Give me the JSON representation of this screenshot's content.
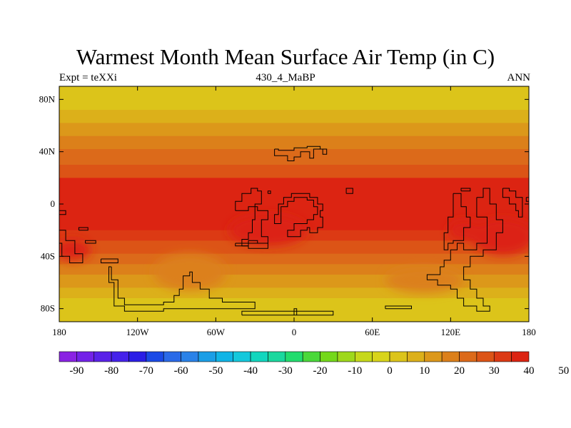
{
  "title": "Warmest Month Mean Surface Air Temp (in C)",
  "subtitle_left": "Expt = teXXi",
  "subtitle_center": "430_4_MaBP",
  "subtitle_right": "ANN",
  "map": {
    "lon_range": [
      -180,
      180
    ],
    "lat_range": [
      -90,
      90
    ],
    "lat_ticks": [
      {
        "lat": 80,
        "label": "80N"
      },
      {
        "lat": 40,
        "label": "40N"
      },
      {
        "lat": 0,
        "label": "0"
      },
      {
        "lat": -40,
        "label": "40S"
      },
      {
        "lat": -80,
        "label": "80S"
      }
    ],
    "lon_ticks": [
      {
        "lon": -180,
        "label": "180"
      },
      {
        "lon": -120,
        "label": "120W"
      },
      {
        "lon": -60,
        "label": "60W"
      },
      {
        "lon": 0,
        "label": "0"
      },
      {
        "lon": 60,
        "label": "60E"
      },
      {
        "lon": 120,
        "label": "120E"
      },
      {
        "lon": 180,
        "label": "180"
      }
    ],
    "bands": [
      {
        "lat0": 90,
        "lat1": 82,
        "value": 2
      },
      {
        "lat0": 82,
        "lat1": 72,
        "value": 4
      },
      {
        "lat0": 72,
        "lat1": 62,
        "value": 8
      },
      {
        "lat0": 62,
        "lat1": 52,
        "value": 12
      },
      {
        "lat0": 52,
        "lat1": 42,
        "value": 15
      },
      {
        "lat0": 42,
        "lat1": 30,
        "value": 20
      },
      {
        "lat0": 30,
        "lat1": 20,
        "value": 25
      },
      {
        "lat0": 20,
        "lat1": -5,
        "value": 35
      },
      {
        "lat0": -5,
        "lat1": -20,
        "value": 38
      },
      {
        "lat0": -20,
        "lat1": -28,
        "value": 33
      },
      {
        "lat0": -28,
        "lat1": -38,
        "value": 26
      },
      {
        "lat0": -38,
        "lat1": -46,
        "value": 20
      },
      {
        "lat0": -46,
        "lat1": -54,
        "value": 16
      },
      {
        "lat0": -54,
        "lat1": -64,
        "value": 12
      },
      {
        "lat0": -64,
        "lat1": -72,
        "value": 9
      },
      {
        "lat0": -72,
        "lat1": -90,
        "value": 4
      }
    ],
    "hotspots": [
      {
        "lon": 160,
        "lat": -25,
        "rlon": 24,
        "rlat": 14,
        "value": 45
      },
      {
        "lon": 130,
        "lat": -20,
        "rlon": 12,
        "rlat": 8,
        "value": 43
      },
      {
        "lon": -170,
        "lat": -35,
        "rlon": 14,
        "rlat": 8,
        "value": 40
      },
      {
        "lon": -20,
        "lat": -20,
        "rlon": 30,
        "rlat": 12,
        "value": 40
      },
      {
        "lon": -80,
        "lat": -52,
        "rlon": 28,
        "rlat": 14,
        "value": 18
      },
      {
        "lon": 100,
        "lat": -58,
        "rlon": 30,
        "rlat": 10,
        "value": 18
      }
    ],
    "coastlines": [
      [
        [
          -15,
          42
        ],
        [
          -15,
          37
        ],
        [
          -5,
          37
        ],
        [
          -5,
          33
        ],
        [
          0,
          33
        ],
        [
          0,
          36
        ],
        [
          5,
          36
        ],
        [
          5,
          40
        ],
        [
          12,
          40
        ],
        [
          12,
          35
        ],
        [
          15,
          35
        ],
        [
          15,
          42
        ],
        [
          22,
          42
        ],
        [
          22,
          38
        ],
        [
          25,
          38
        ],
        [
          25,
          42
        ],
        [
          20,
          42
        ],
        [
          20,
          44
        ],
        [
          10,
          44
        ],
        [
          10,
          43
        ],
        [
          0,
          43
        ],
        [
          0,
          41
        ],
        [
          -12,
          41
        ],
        [
          -12,
          42
        ],
        [
          -15,
          42
        ]
      ],
      [
        [
          -45,
          -5
        ],
        [
          -45,
          2
        ],
        [
          -40,
          2
        ],
        [
          -40,
          8
        ],
        [
          -33,
          8
        ],
        [
          -33,
          12
        ],
        [
          -28,
          12
        ],
        [
          -28,
          10
        ],
        [
          -25,
          10
        ],
        [
          -25,
          0
        ],
        [
          -30,
          0
        ],
        [
          -30,
          -12
        ],
        [
          -32,
          -12
        ],
        [
          -32,
          -22
        ],
        [
          -35,
          -22
        ],
        [
          -35,
          -27
        ],
        [
          -40,
          -27
        ],
        [
          -40,
          -32
        ],
        [
          -35,
          -32
        ],
        [
          -35,
          -28
        ],
        [
          -28,
          -28
        ],
        [
          -28,
          -30
        ],
        [
          -20,
          -30
        ],
        [
          -20,
          -25
        ],
        [
          -25,
          -25
        ],
        [
          -25,
          -12
        ],
        [
          -20,
          -12
        ],
        [
          -20,
          -5
        ],
        [
          -28,
          -5
        ],
        [
          -28,
          -2
        ],
        [
          -35,
          -2
        ],
        [
          -35,
          -5
        ],
        [
          -45,
          -5
        ]
      ],
      [
        [
          -45,
          -30
        ],
        [
          -45,
          -32
        ],
        [
          -35,
          -32
        ],
        [
          -35,
          -34
        ],
        [
          -20,
          -34
        ],
        [
          -20,
          -30
        ],
        [
          -45,
          -30
        ]
      ],
      [
        [
          -10,
          -15
        ],
        [
          -10,
          -2
        ],
        [
          -5,
          -2
        ],
        [
          -5,
          2
        ],
        [
          0,
          2
        ],
        [
          0,
          5
        ],
        [
          10,
          5
        ],
        [
          10,
          3
        ],
        [
          15,
          3
        ],
        [
          15,
          -2
        ],
        [
          18,
          -2
        ],
        [
          18,
          -8
        ],
        [
          15,
          -8
        ],
        [
          15,
          -12
        ],
        [
          10,
          -12
        ],
        [
          10,
          -15
        ],
        [
          0,
          -15
        ],
        [
          0,
          -20
        ],
        [
          -5,
          -20
        ],
        [
          -5,
          -25
        ],
        [
          5,
          -25
        ],
        [
          5,
          -20
        ],
        [
          10,
          -20
        ],
        [
          10,
          -18
        ],
        [
          12,
          -18
        ],
        [
          12,
          -22
        ],
        [
          18,
          -22
        ],
        [
          18,
          -18
        ],
        [
          22,
          -18
        ],
        [
          22,
          -10
        ],
        [
          20,
          -10
        ],
        [
          20,
          -5
        ],
        [
          22,
          -5
        ],
        [
          22,
          0
        ],
        [
          18,
          0
        ],
        [
          18,
          5
        ],
        [
          12,
          5
        ],
        [
          12,
          8
        ],
        [
          -2,
          8
        ],
        [
          -2,
          5
        ],
        [
          -8,
          5
        ],
        [
          -8,
          0
        ],
        [
          -12,
          0
        ],
        [
          -12,
          -8
        ],
        [
          -15,
          -8
        ],
        [
          -15,
          -15
        ],
        [
          -10,
          -15
        ]
      ],
      [
        [
          122,
          8
        ],
        [
          122,
          -10
        ],
        [
          118,
          -10
        ],
        [
          118,
          -22
        ],
        [
          115,
          -22
        ],
        [
          115,
          -35
        ],
        [
          118,
          -35
        ],
        [
          118,
          -30
        ],
        [
          122,
          -30
        ],
        [
          122,
          -28
        ],
        [
          130,
          -28
        ],
        [
          130,
          -18
        ],
        [
          135,
          -18
        ],
        [
          135,
          -10
        ],
        [
          132,
          -10
        ],
        [
          132,
          -2
        ],
        [
          128,
          -2
        ],
        [
          128,
          8
        ],
        [
          122,
          8
        ]
      ],
      [
        [
          128,
          10
        ],
        [
          128,
          12
        ],
        [
          135,
          12
        ],
        [
          135,
          10
        ],
        [
          128,
          10
        ]
      ],
      [
        [
          140,
          5
        ],
        [
          140,
          -10
        ],
        [
          148,
          -10
        ],
        [
          148,
          -30
        ],
        [
          140,
          -30
        ],
        [
          140,
          -35
        ],
        [
          130,
          -35
        ],
        [
          130,
          -30
        ],
        [
          125,
          -30
        ],
        [
          125,
          -35
        ],
        [
          120,
          -35
        ],
        [
          120,
          -43
        ],
        [
          115,
          -43
        ],
        [
          115,
          -48
        ],
        [
          112,
          -48
        ],
        [
          112,
          -54
        ],
        [
          102,
          -54
        ],
        [
          102,
          -58
        ],
        [
          110,
          -58
        ],
        [
          110,
          -62
        ],
        [
          120,
          -62
        ],
        [
          120,
          -65
        ],
        [
          125,
          -65
        ],
        [
          125,
          -72
        ],
        [
          130,
          -72
        ],
        [
          130,
          -78
        ],
        [
          140,
          -78
        ],
        [
          140,
          -82
        ],
        [
          150,
          -82
        ],
        [
          150,
          -78
        ],
        [
          145,
          -78
        ],
        [
          145,
          -72
        ],
        [
          140,
          -72
        ],
        [
          140,
          -65
        ],
        [
          135,
          -65
        ],
        [
          135,
          -58
        ],
        [
          130,
          -58
        ],
        [
          130,
          -48
        ],
        [
          135,
          -48
        ],
        [
          135,
          -40
        ],
        [
          145,
          -40
        ],
        [
          145,
          -35
        ],
        [
          155,
          -35
        ],
        [
          155,
          -22
        ],
        [
          160,
          -22
        ],
        [
          160,
          -12
        ],
        [
          155,
          -12
        ],
        [
          155,
          0
        ],
        [
          150,
          0
        ],
        [
          150,
          12
        ],
        [
          145,
          12
        ],
        [
          145,
          5
        ],
        [
          140,
          5
        ]
      ],
      [
        [
          160,
          12
        ],
        [
          160,
          5
        ],
        [
          165,
          5
        ],
        [
          165,
          0
        ],
        [
          170,
          0
        ],
        [
          170,
          -5
        ],
        [
          172,
          -5
        ],
        [
          172,
          -10
        ],
        [
          175,
          -10
        ],
        [
          175,
          5
        ],
        [
          170,
          5
        ],
        [
          170,
          10
        ],
        [
          165,
          10
        ],
        [
          165,
          12
        ],
        [
          160,
          12
        ]
      ],
      [
        [
          178,
          5
        ],
        [
          178,
          2
        ],
        [
          180,
          2
        ],
        [
          180,
          5
        ],
        [
          178,
          5
        ]
      ],
      [
        [
          -180,
          -20
        ],
        [
          -180,
          -30
        ],
        [
          -178,
          -30
        ],
        [
          -178,
          -40
        ],
        [
          -172,
          -40
        ],
        [
          -172,
          -45
        ],
        [
          -162,
          -45
        ],
        [
          -162,
          -38
        ],
        [
          -168,
          -38
        ],
        [
          -168,
          -28
        ],
        [
          -175,
          -28
        ],
        [
          -175,
          -20
        ],
        [
          -180,
          -20
        ]
      ],
      [
        [
          -165,
          -20
        ],
        [
          -165,
          -18
        ],
        [
          -158,
          -18
        ],
        [
          -158,
          -20
        ],
        [
          -165,
          -20
        ]
      ],
      [
        [
          -160,
          -30
        ],
        [
          -160,
          -28
        ],
        [
          -152,
          -28
        ],
        [
          -152,
          -30
        ],
        [
          -160,
          -30
        ]
      ],
      [
        [
          -148,
          -42
        ],
        [
          -148,
          -45
        ],
        [
          -135,
          -45
        ],
        [
          -135,
          -42
        ],
        [
          -148,
          -42
        ]
      ],
      [
        [
          -140,
          -48
        ],
        [
          -140,
          -58
        ],
        [
          -135,
          -58
        ],
        [
          -135,
          -72
        ],
        [
          -130,
          -72
        ],
        [
          -130,
          -77
        ],
        [
          -100,
          -77
        ],
        [
          -100,
          -75
        ],
        [
          -92,
          -75
        ],
        [
          -92,
          -70
        ],
        [
          -88,
          -70
        ],
        [
          -88,
          -65
        ],
        [
          -85,
          -65
        ],
        [
          -85,
          -55
        ],
        [
          -80,
          -55
        ],
        [
          -80,
          -52
        ],
        [
          -78,
          -52
        ],
        [
          -78,
          -60
        ],
        [
          -72,
          -60
        ],
        [
          -72,
          -65
        ],
        [
          -65,
          -65
        ],
        [
          -65,
          -72
        ],
        [
          -55,
          -72
        ],
        [
          -55,
          -75
        ],
        [
          -30,
          -75
        ],
        [
          -30,
          -80
        ],
        [
          -100,
          -80
        ],
        [
          -100,
          -82
        ],
        [
          -130,
          -82
        ],
        [
          -130,
          -78
        ],
        [
          -138,
          -78
        ],
        [
          -138,
          -60
        ],
        [
          -142,
          -60
        ],
        [
          -142,
          -48
        ],
        [
          -140,
          -48
        ]
      ],
      [
        [
          -180,
          -5
        ],
        [
          -180,
          -8
        ],
        [
          -175,
          -8
        ],
        [
          -175,
          -5
        ],
        [
          -180,
          -5
        ]
      ],
      [
        [
          -40,
          -85
        ],
        [
          -40,
          -82
        ],
        [
          30,
          -82
        ],
        [
          30,
          -85
        ],
        [
          -40,
          -85
        ]
      ],
      [
        [
          0,
          -85
        ],
        [
          0,
          -80
        ],
        [
          2,
          -80
        ],
        [
          2,
          -85
        ]
      ],
      [
        [
          70,
          -80
        ],
        [
          70,
          -78
        ],
        [
          90,
          -78
        ],
        [
          90,
          -80
        ],
        [
          70,
          -80
        ]
      ],
      [
        [
          40,
          8
        ],
        [
          40,
          12
        ],
        [
          45,
          12
        ],
        [
          45,
          8
        ],
        [
          40,
          8
        ]
      ],
      [
        [
          -20,
          8
        ],
        [
          -20,
          10
        ],
        [
          -18,
          10
        ],
        [
          -18,
          8
        ],
        [
          -20,
          8
        ]
      ]
    ]
  },
  "colorbar": {
    "labels": [
      "-90",
      "-80",
      "-70",
      "-60",
      "-50",
      "-40",
      "-30",
      "-20",
      "-10",
      "0",
      "10",
      "20",
      "30",
      "40",
      "50"
    ],
    "colors": [
      "#8a22e3",
      "#7322e8",
      "#5a22e8",
      "#4522ea",
      "#2a1ee6",
      "#1a4ae6",
      "#2a6ae8",
      "#2a82e8",
      "#1a9ee6",
      "#10b4e6",
      "#14c8dc",
      "#12d6be",
      "#1ad89e",
      "#22dc6e",
      "#4ad83a",
      "#74d81a",
      "#9ed81a",
      "#c6d81a",
      "#d8d41a",
      "#dcc41a",
      "#dcb01a",
      "#dc981a",
      "#dc801a",
      "#dc6a1a",
      "#dc5416",
      "#dc3a14",
      "#dc2412"
    ]
  }
}
